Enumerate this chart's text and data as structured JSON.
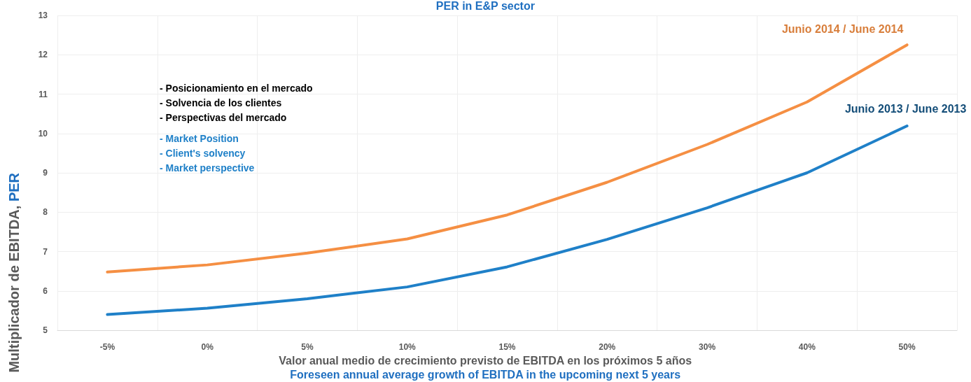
{
  "chart_data": {
    "type": "line",
    "title": "PER in E&P sector",
    "categories": [
      "-5%",
      "0%",
      "5%",
      "10%",
      "15%",
      "20%",
      "30%",
      "40%",
      "50%"
    ],
    "series": [
      {
        "name": "Junio 2014 / June 2014",
        "color": "#f58f43",
        "values": [
          6.48,
          6.66,
          6.96,
          7.32,
          7.93,
          8.76,
          9.72,
          10.8,
          12.25
        ]
      },
      {
        "name": "Junio 2013 / June 2013",
        "color": "#1f80c8",
        "values": [
          5.4,
          5.56,
          5.8,
          6.1,
          6.61,
          7.31,
          8.11,
          9.0,
          10.19
        ]
      }
    ],
    "ylim": [
      5,
      13
    ],
    "yticks": [
      5,
      6,
      7,
      8,
      9,
      10,
      11,
      12,
      13
    ],
    "ylabel": "Multiplicador de EBITDA, PER",
    "xlabel": "Valor anual medio de crecimiento previsto de EBITDA en los próximos 5 años\nForeseen annual average growth of EBITDA in the upcoming next 5 years",
    "annotations": [
      "- Posicionamiento en el mercado",
      "- Solvencia de los clientes",
      "- Perspectivas del mercado",
      "- Market Position",
      "- Client's solvency",
      "- Market perspective"
    ],
    "grid": true,
    "marker": "none",
    "line_style": "solid",
    "legend": false
  }
}
